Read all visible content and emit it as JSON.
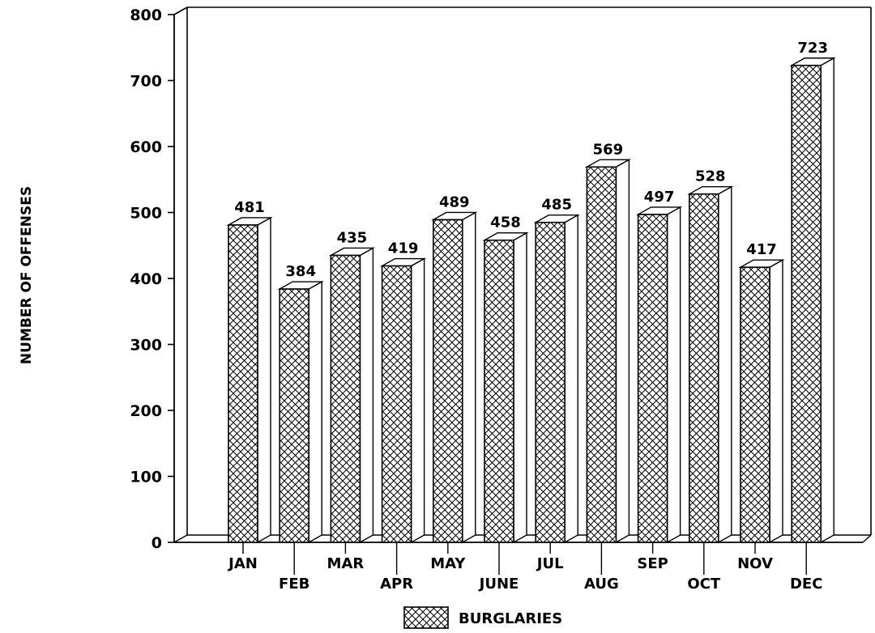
{
  "chart_data": {
    "type": "bar",
    "title": "",
    "xlabel": "",
    "ylabel": "NUMBER OF OFFENSES",
    "ylim": [
      0,
      800
    ],
    "yticks": [
      0,
      100,
      200,
      300,
      400,
      500,
      600,
      700,
      800
    ],
    "grid": false,
    "style": "3d-hatched",
    "categories": [
      "JAN",
      "FEB",
      "MAR",
      "APR",
      "MAY",
      "JUNE",
      "JUL",
      "AUG",
      "SEP",
      "OCT",
      "NOV",
      "DEC"
    ],
    "series": [
      {
        "name": "BURGLARIES",
        "values": [
          481,
          384,
          435,
          419,
          489,
          458,
          485,
          569,
          497,
          528,
          417,
          723
        ]
      }
    ],
    "legend_position": "bottom-center",
    "colors": {
      "ink": "#000000",
      "fill": "#ffffff"
    }
  }
}
